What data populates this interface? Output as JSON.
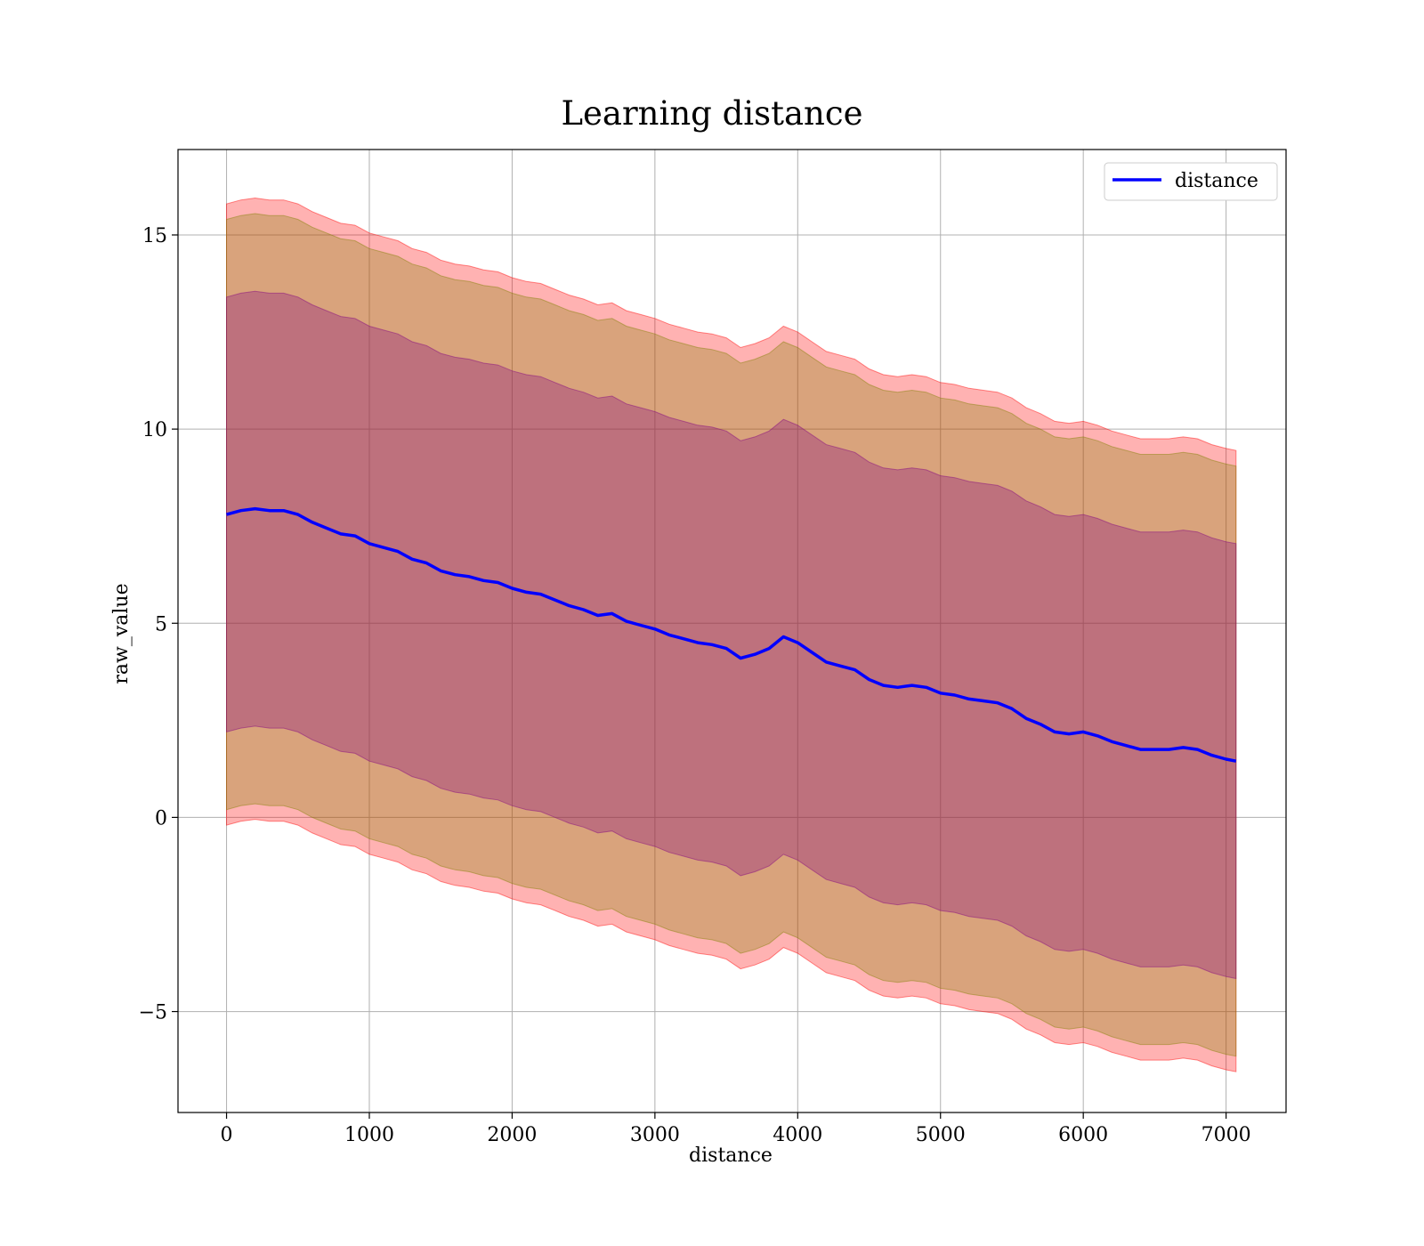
{
  "chart_data": {
    "type": "line",
    "title": "Learning distance",
    "xlabel": "distance",
    "ylabel": "raw_value",
    "xlim": [
      -340,
      7420
    ],
    "ylim": [
      -7.6,
      17.2
    ],
    "xticks": [
      0,
      1000,
      2000,
      3000,
      4000,
      5000,
      6000,
      7000
    ],
    "xtick_labels": [
      "0",
      "1000",
      "2000",
      "3000",
      "4000",
      "5000",
      "6000",
      "7000"
    ],
    "yticks": [
      -5,
      0,
      5,
      10,
      15
    ],
    "ytick_labels": [
      "−5",
      "0",
      "5",
      "10",
      "15"
    ],
    "grid": true,
    "legend": {
      "position": "top-right",
      "entries": [
        {
          "name": "distance",
          "color": "#0000ff"
        }
      ]
    },
    "series": [
      {
        "name": "distance",
        "color": "#0000ff",
        "x": [
          0,
          100,
          200,
          300,
          400,
          500,
          600,
          700,
          800,
          900,
          1000,
          1100,
          1200,
          1300,
          1400,
          1500,
          1600,
          1700,
          1800,
          1900,
          2000,
          2100,
          2200,
          2300,
          2400,
          2500,
          2600,
          2700,
          2800,
          2900,
          3000,
          3100,
          3200,
          3300,
          3400,
          3500,
          3600,
          3700,
          3800,
          3900,
          4000,
          4100,
          4200,
          4300,
          4400,
          4500,
          4600,
          4700,
          4800,
          4900,
          5000,
          5100,
          5200,
          5300,
          5400,
          5500,
          5600,
          5700,
          5800,
          5900,
          6000,
          6100,
          6200,
          6300,
          6400,
          6500,
          6600,
          6700,
          6800,
          6900,
          7000,
          7070
        ],
        "y": [
          7.8,
          7.9,
          7.95,
          7.9,
          7.9,
          7.8,
          7.6,
          7.45,
          7.3,
          7.25,
          7.05,
          6.95,
          6.85,
          6.65,
          6.55,
          6.35,
          6.25,
          6.2,
          6.1,
          6.05,
          5.9,
          5.8,
          5.75,
          5.6,
          5.45,
          5.35,
          5.2,
          5.25,
          5.05,
          4.95,
          4.85,
          4.7,
          4.6,
          4.5,
          4.45,
          4.35,
          4.1,
          4.2,
          4.35,
          4.65,
          4.5,
          4.25,
          4.0,
          3.9,
          3.8,
          3.55,
          3.4,
          3.35,
          3.4,
          3.35,
          3.2,
          3.15,
          3.05,
          3.0,
          2.95,
          2.8,
          2.55,
          2.4,
          2.2,
          2.15,
          2.2,
          2.1,
          1.95,
          1.85,
          1.75,
          1.75,
          1.75,
          1.8,
          1.75,
          1.6,
          1.5,
          1.45
        ]
      }
    ],
    "bands": [
      {
        "color": "#ff0000",
        "opacity": 0.3,
        "upper_offset": 8.0,
        "lower_offset": 8.0
      },
      {
        "color": "#808000",
        "opacity": 0.3,
        "upper_offset": 7.6,
        "lower_offset": 7.6
      },
      {
        "color": "#800080",
        "opacity": 0.3,
        "upper_offset": 5.6,
        "lower_offset": 5.6
      }
    ]
  }
}
